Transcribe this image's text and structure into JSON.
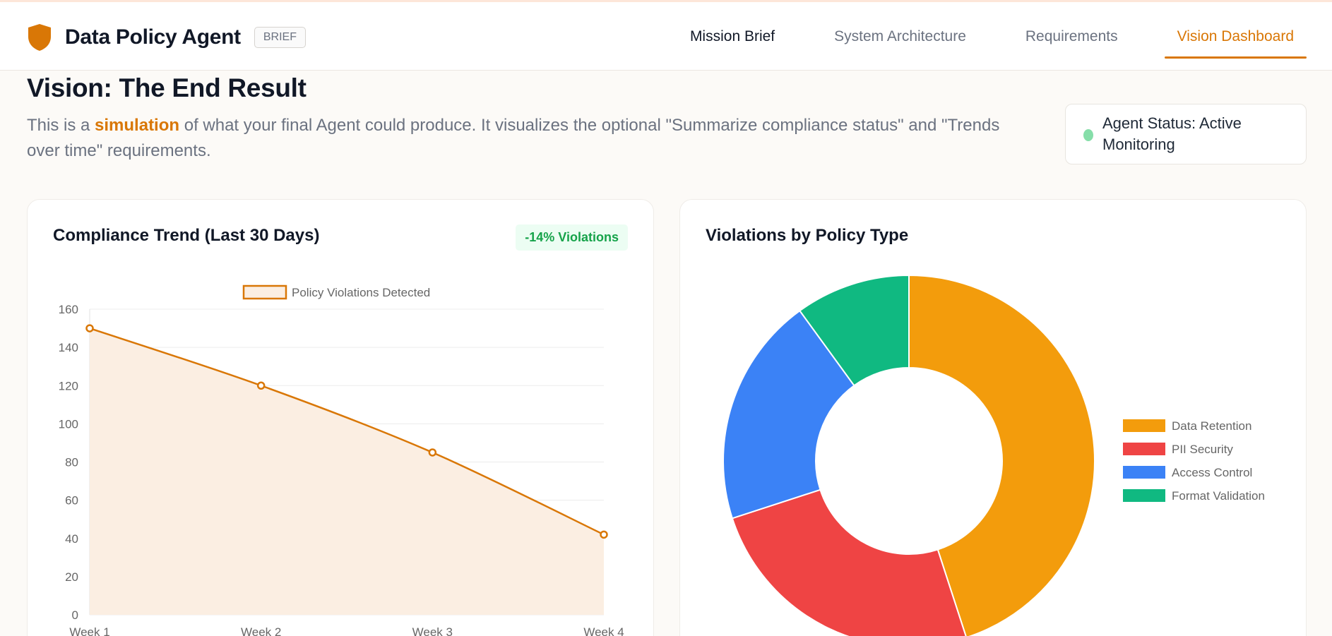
{
  "app": {
    "title": "Data Policy Agent",
    "badge": "BRIEF",
    "logo_icon": "shield-icon",
    "accent_color": "#d97706"
  },
  "nav": {
    "items": [
      {
        "label": "Mission Brief",
        "state": "normal"
      },
      {
        "label": "System Architecture",
        "state": "normal"
      },
      {
        "label": "Requirements",
        "state": "normal"
      },
      {
        "label": "Vision Dashboard",
        "state": "active"
      }
    ]
  },
  "page": {
    "title": "Vision: The End Result",
    "intro_before": "This is a ",
    "intro_highlight": "simulation",
    "intro_after": " of what your final Agent could produce. It visualizes the optional \"Summarize compliance status\" and \"Trends over time\" requirements."
  },
  "status": {
    "label": "Agent Status: Active Monitoring",
    "dot_color": "#86dea9"
  },
  "trend_card": {
    "title": "Compliance Trend (Last 30 Days)",
    "badge": "-14% Violations",
    "badge_color": "#16a34a"
  },
  "donut_card": {
    "title": "Violations by Policy Type"
  },
  "chart_data": [
    {
      "type": "line",
      "title": "",
      "legend": "top",
      "categories": [
        "Week 1",
        "Week 2",
        "Week 3",
        "Week 4"
      ],
      "series": [
        {
          "name": "Policy Violations Detected",
          "values": [
            150,
            120,
            85,
            42
          ],
          "color": "#d97706",
          "fill": "#fbeee2"
        }
      ],
      "yticks": [
        0,
        20,
        40,
        60,
        80,
        100,
        120,
        140,
        160
      ],
      "ylim": [
        0,
        160
      ],
      "grid": true
    },
    {
      "type": "pie",
      "donut": true,
      "legend": "right",
      "labels": [
        "Data Retention",
        "PII Security",
        "Access Control",
        "Format Validation"
      ],
      "values": [
        45,
        25,
        20,
        10
      ],
      "colors": [
        "#f39c0c",
        "#ef4444",
        "#3b82f6",
        "#10b981"
      ]
    }
  ]
}
